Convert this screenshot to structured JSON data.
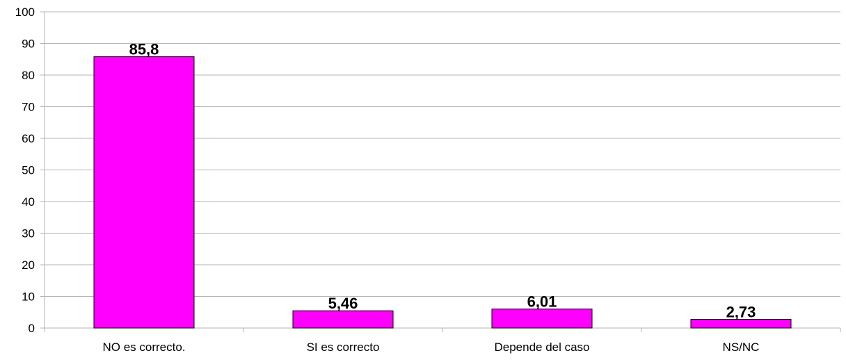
{
  "chart_data": {
    "type": "bar",
    "title": "",
    "xlabel": "",
    "ylabel": "",
    "categories": [
      "NO es correcto.",
      "SI es correcto",
      "Depende del caso",
      "NS/NC"
    ],
    "values": [
      85.8,
      5.46,
      6.01,
      2.73
    ],
    "value_labels": [
      "85,8",
      "5,46",
      "6,01",
      "2,73"
    ],
    "ylim": [
      0,
      100
    ],
    "yticks": [
      0,
      10,
      20,
      30,
      40,
      50,
      60,
      70,
      80,
      90,
      100
    ],
    "grid": true,
    "legend": "none",
    "colors": {
      "bar_fill": "#ff00ff",
      "bar_stroke": "#000000",
      "grid": "#b3b3b3",
      "axis": "#b3b3b3"
    }
  }
}
